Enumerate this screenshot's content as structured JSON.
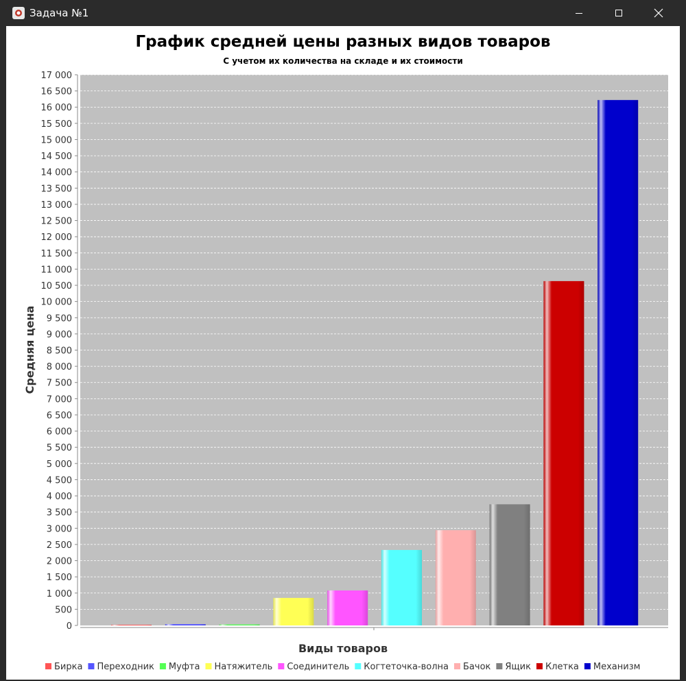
{
  "window": {
    "title": "Задача №1",
    "icon": "java-cup-icon",
    "controls": [
      "minimize-icon",
      "maximize-icon",
      "close-icon"
    ]
  },
  "chart_data": {
    "type": "bar",
    "title": "График средней цены разных видов товаров",
    "subtitle": "С учетом их количества на складе и их стоимости",
    "xlabel": "Виды товаров",
    "ylabel": "Средняя цена",
    "ylim": [
      0,
      17000
    ],
    "ytick_step": 500,
    "grid": true,
    "legend_position": "bottom",
    "series": [
      {
        "name": "Бирка",
        "value": 20,
        "color": "#ff5555"
      },
      {
        "name": "Переходник",
        "value": 40,
        "color": "#5555ff"
      },
      {
        "name": "Муфта",
        "value": 30,
        "color": "#55ff55"
      },
      {
        "name": "Натяжитель",
        "value": 850,
        "color": "#ffff55"
      },
      {
        "name": "Соединитель",
        "value": 1080,
        "color": "#ff55ff"
      },
      {
        "name": "Когтеточка-волна",
        "value": 2330,
        "color": "#55ffff"
      },
      {
        "name": "Бачок",
        "value": 2940,
        "color": "#ffafaf"
      },
      {
        "name": "Ящик",
        "value": 3740,
        "color": "#808080"
      },
      {
        "name": "Клетка",
        "value": 10630,
        "color": "#cc0000"
      },
      {
        "name": "Механизм",
        "value": 16220,
        "color": "#0000cc"
      }
    ]
  }
}
